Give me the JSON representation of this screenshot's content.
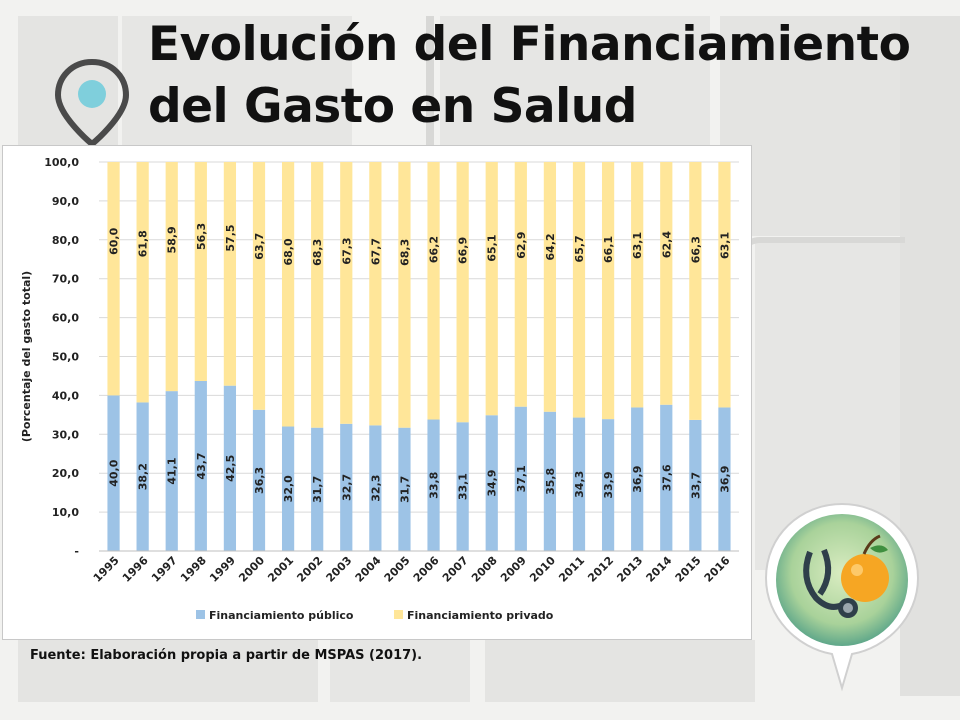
{
  "slide": {
    "title_line1": "Evolución del Financiamiento",
    "title_line2": "del Gasto en Salud",
    "source": "Fuente: Elaboración propia a partir de MSPAS (2017).",
    "icons": {
      "pin": "location-pin-icon",
      "badge": "stethoscope-fruit-icon"
    }
  },
  "chart_data": {
    "type": "bar",
    "stacked": true,
    "categories": [
      "1995",
      "1996",
      "1997",
      "1998",
      "1999",
      "2000",
      "2001",
      "2002",
      "2003",
      "2004",
      "2005",
      "2006",
      "2007",
      "2008",
      "2009",
      "2010",
      "2011",
      "2012",
      "2013",
      "2014",
      "2015",
      "2016"
    ],
    "series": [
      {
        "name": "Financiamiento público",
        "color": "#9dc3e6",
        "values": [
          40.0,
          38.2,
          41.1,
          43.7,
          42.5,
          36.3,
          32.0,
          31.7,
          32.7,
          32.3,
          31.7,
          33.8,
          33.1,
          34.9,
          37.1,
          35.8,
          34.3,
          33.9,
          36.9,
          37.6,
          33.7,
          36.9
        ],
        "labels": [
          "40,0",
          "38,2",
          "41,1",
          "43,7",
          "42,5",
          "36,3",
          "32,0",
          "31,7",
          "32,7",
          "32,3",
          "31,7",
          "33,8",
          "33,1",
          "34,9",
          "37,1",
          "35,8",
          "34,3",
          "33,9",
          "36,9",
          "37,6",
          "33,7",
          "36,9"
        ]
      },
      {
        "name": "Financiamiento privado",
        "color": "#ffe699",
        "values": [
          60.0,
          61.8,
          58.9,
          56.3,
          57.5,
          63.7,
          68.0,
          68.3,
          67.3,
          67.7,
          68.3,
          66.2,
          66.9,
          65.1,
          62.9,
          64.2,
          65.7,
          66.1,
          63.1,
          62.4,
          66.3,
          63.1
        ],
        "labels": [
          "60,0",
          "61,8",
          "58,9",
          "56,3",
          "57,5",
          "63,7",
          "68,0",
          "68,3",
          "67,3",
          "67,7",
          "68,3",
          "66,2",
          "66,9",
          "65,1",
          "62,9",
          "64,2",
          "65,7",
          "66,1",
          "63,1",
          "62,4",
          "66,3",
          "63,1"
        ]
      }
    ],
    "ylabel": "(Porcentaje del gasto total)",
    "xlabel": "",
    "ylim": [
      0,
      100
    ],
    "yticks": [
      0,
      10,
      20,
      30,
      40,
      50,
      60,
      70,
      80,
      90,
      100
    ],
    "ytick_labels": [
      "-",
      "10,0",
      "20,0",
      "30,0",
      "40,0",
      "50,0",
      "60,0",
      "70,0",
      "80,0",
      "90,0",
      "100,0"
    ],
    "grid": true,
    "legend_position": "bottom"
  }
}
